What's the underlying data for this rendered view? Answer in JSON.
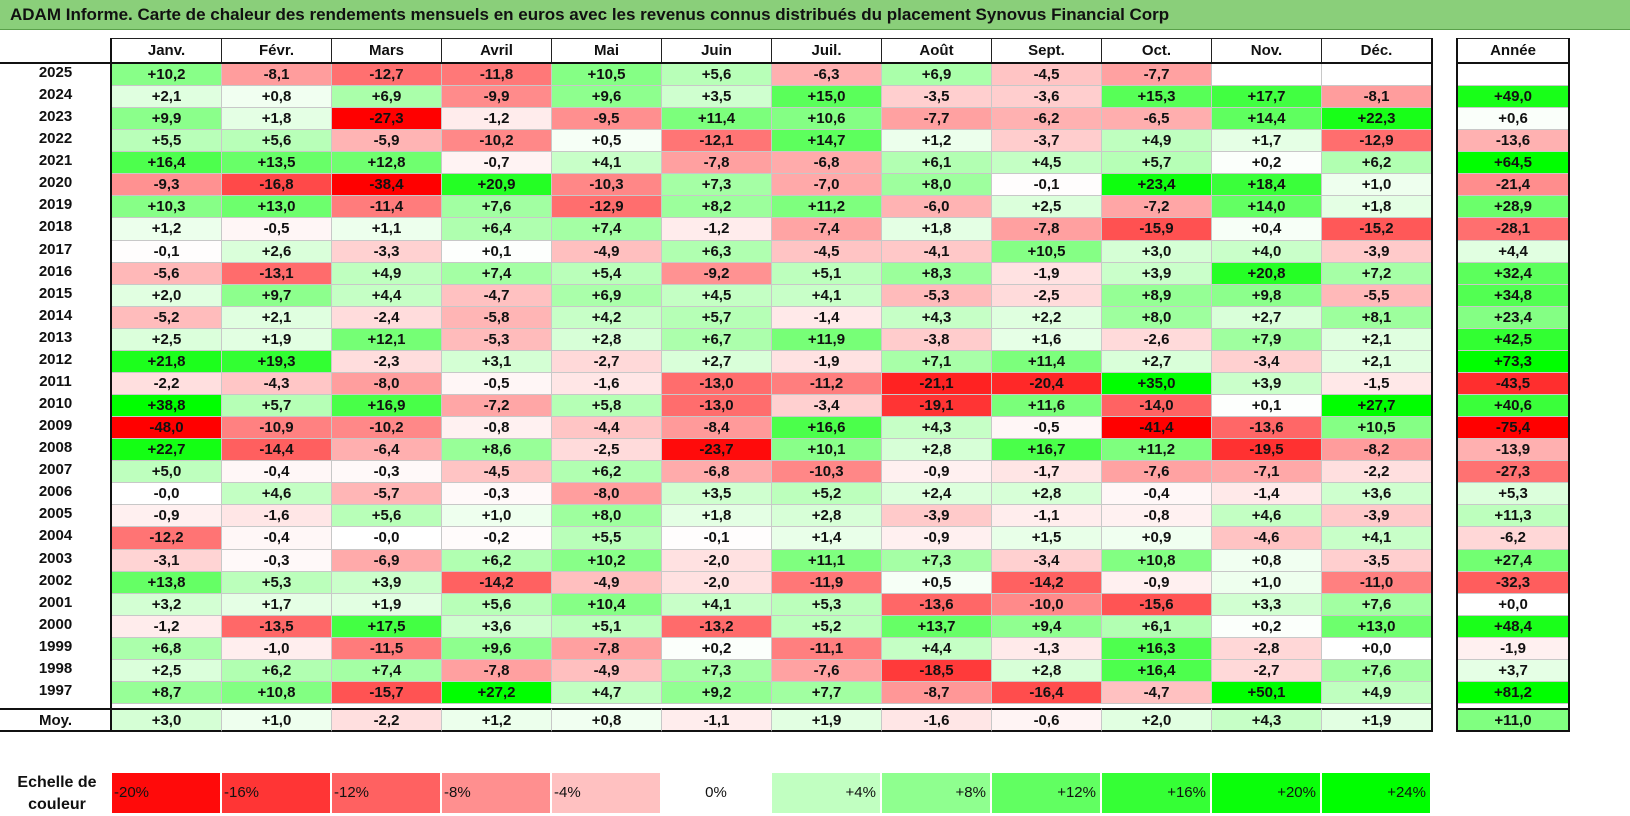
{
  "title": "ADAM Informe. Carte de chaleur des rendements mensuels en euros avec les revenus connus distribués du placement Synovus Financial Corp",
  "colors": {
    "title_bar": "#8acf7a",
    "negative": "#ff0000",
    "positive": "#00ff00",
    "neutral": "#ffffff"
  },
  "chart_data": {
    "type": "heatmap",
    "title": "ADAM Informe. Carte de chaleur des rendements mensuels en euros avec les revenus connus distribués du placement Synovus Financial Corp",
    "months": [
      "Janv.",
      "Févr.",
      "Mars",
      "Avril",
      "Mai",
      "Juin",
      "Juil.",
      "Août",
      "Sept.",
      "Oct.",
      "Nov.",
      "Déc."
    ],
    "year_header": "Année",
    "rows": [
      {
        "year": "2025",
        "values": [
          "+10,2",
          "-8,1",
          "-12,7",
          "-11,8",
          "+10,5",
          "+5,6",
          "-6,3",
          "+6,9",
          "-4,5",
          "-7,7",
          "",
          ""
        ],
        "annual": ""
      },
      {
        "year": "2024",
        "values": [
          "+2,1",
          "+0,8",
          "+6,9",
          "-9,9",
          "+9,6",
          "+3,5",
          "+15,0",
          "-3,5",
          "-3,6",
          "+15,3",
          "+17,7",
          "-8,1"
        ],
        "annual": "+49,0"
      },
      {
        "year": "2023",
        "values": [
          "+9,9",
          "+1,8",
          "-27,3",
          "-1,2",
          "-9,5",
          "+11,4",
          "+10,6",
          "-7,7",
          "-6,2",
          "-6,5",
          "+14,4",
          "+22,3"
        ],
        "annual": "+0,6"
      },
      {
        "year": "2022",
        "values": [
          "+5,5",
          "+5,6",
          "-5,9",
          "-10,2",
          "+0,5",
          "-12,1",
          "+14,7",
          "+1,2",
          "-3,7",
          "+4,9",
          "+1,7",
          "-12,9"
        ],
        "annual": "-13,6"
      },
      {
        "year": "2021",
        "values": [
          "+16,4",
          "+13,5",
          "+12,8",
          "-0,7",
          "+4,1",
          "-7,8",
          "-6,8",
          "+6,1",
          "+4,5",
          "+5,7",
          "+0,2",
          "+6,2"
        ],
        "annual": "+64,5"
      },
      {
        "year": "2020",
        "values": [
          "-9,3",
          "-16,8",
          "-38,4",
          "+20,9",
          "-10,3",
          "+7,3",
          "-7,0",
          "+8,0",
          "-0,1",
          "+23,4",
          "+18,4",
          "+1,0"
        ],
        "annual": "-21,4"
      },
      {
        "year": "2019",
        "values": [
          "+10,3",
          "+13,0",
          "-11,4",
          "+7,6",
          "-12,9",
          "+8,2",
          "+11,2",
          "-6,0",
          "+2,5",
          "-7,2",
          "+14,0",
          "+1,8"
        ],
        "annual": "+28,9"
      },
      {
        "year": "2018",
        "values": [
          "+1,2",
          "-0,5",
          "+1,1",
          "+6,4",
          "+7,4",
          "-1,2",
          "-7,4",
          "+1,8",
          "-7,8",
          "-15,9",
          "+0,4",
          "-15,2"
        ],
        "annual": "-28,1"
      },
      {
        "year": "2017",
        "values": [
          "-0,1",
          "+2,6",
          "-3,3",
          "+0,1",
          "-4,9",
          "+6,3",
          "-4,5",
          "-4,1",
          "+10,5",
          "+3,0",
          "+4,0",
          "-3,9"
        ],
        "annual": "+4,4"
      },
      {
        "year": "2016",
        "values": [
          "-5,6",
          "-13,1",
          "+4,9",
          "+7,4",
          "+5,4",
          "-9,2",
          "+5,1",
          "+8,3",
          "-1,9",
          "+3,9",
          "+20,8",
          "+7,2"
        ],
        "annual": "+32,4"
      },
      {
        "year": "2015",
        "values": [
          "+2,0",
          "+9,7",
          "+4,4",
          "-4,7",
          "+6,9",
          "+4,5",
          "+4,1",
          "-5,3",
          "-2,5",
          "+8,9",
          "+9,8",
          "-5,5"
        ],
        "annual": "+34,8"
      },
      {
        "year": "2014",
        "values": [
          "-5,2",
          "+2,1",
          "-2,4",
          "-5,8",
          "+4,2",
          "+5,7",
          "-1,4",
          "+4,3",
          "+2,2",
          "+8,0",
          "+2,7",
          "+8,1"
        ],
        "annual": "+23,4"
      },
      {
        "year": "2013",
        "values": [
          "+2,5",
          "+1,9",
          "+12,1",
          "-5,3",
          "+2,8",
          "+6,7",
          "+11,9",
          "-3,8",
          "+1,6",
          "-2,6",
          "+7,9",
          "+2,1"
        ],
        "annual": "+42,5"
      },
      {
        "year": "2012",
        "values": [
          "+21,8",
          "+19,3",
          "-2,3",
          "+3,1",
          "-2,7",
          "+2,7",
          "-1,9",
          "+7,1",
          "+11,4",
          "+2,7",
          "-3,4",
          "+2,1"
        ],
        "annual": "+73,3"
      },
      {
        "year": "2011",
        "values": [
          "-2,2",
          "-4,3",
          "-8,0",
          "-0,5",
          "-1,6",
          "-13,0",
          "-11,2",
          "-21,1",
          "-20,4",
          "+35,0",
          "+3,9",
          "-1,5"
        ],
        "annual": "-43,5"
      },
      {
        "year": "2010",
        "values": [
          "+38,8",
          "+5,7",
          "+16,9",
          "-7,2",
          "+5,8",
          "-13,0",
          "-3,4",
          "-19,1",
          "+11,6",
          "-14,0",
          "+0,1",
          "+27,7"
        ],
        "annual": "+40,6"
      },
      {
        "year": "2009",
        "values": [
          "-48,0",
          "-10,9",
          "-10,2",
          "-0,8",
          "-4,4",
          "-8,4",
          "+16,6",
          "+4,3",
          "-0,5",
          "-41,4",
          "-13,6",
          "+10,5"
        ],
        "annual": "-75,4"
      },
      {
        "year": "2008",
        "values": [
          "+22,7",
          "-14,4",
          "-6,4",
          "+8,6",
          "-2,5",
          "-23,7",
          "+10,1",
          "+2,8",
          "+16,7",
          "+11,2",
          "-19,5",
          "-8,2"
        ],
        "annual": "-13,9"
      },
      {
        "year": "2007",
        "values": [
          "+5,0",
          "-0,4",
          "-0,3",
          "-4,5",
          "+6,2",
          "-6,8",
          "-10,3",
          "-0,9",
          "-1,7",
          "-7,6",
          "-7,1",
          "-2,2"
        ],
        "annual": "-27,3"
      },
      {
        "year": "2006",
        "values": [
          "-0,0",
          "+4,6",
          "-5,7",
          "-0,3",
          "-8,0",
          "+3,5",
          "+5,2",
          "+2,4",
          "+2,8",
          "-0,4",
          "-1,4",
          "+3,6"
        ],
        "annual": "+5,3"
      },
      {
        "year": "2005",
        "values": [
          "-0,9",
          "-1,6",
          "+5,6",
          "+1,0",
          "+8,0",
          "+1,8",
          "+2,8",
          "-3,9",
          "-1,1",
          "-0,8",
          "+4,6",
          "-3,9"
        ],
        "annual": "+11,3"
      },
      {
        "year": "2004",
        "values": [
          "-12,2",
          "-0,4",
          "-0,0",
          "-0,2",
          "+5,5",
          "-0,1",
          "+1,4",
          "-0,9",
          "+1,5",
          "+0,9",
          "-4,6",
          "+4,1"
        ],
        "annual": "-6,2"
      },
      {
        "year": "2003",
        "values": [
          "-3,1",
          "-0,3",
          "-6,9",
          "+6,2",
          "+10,2",
          "-2,0",
          "+11,1",
          "+7,3",
          "-3,4",
          "+10,8",
          "+0,8",
          "-3,5"
        ],
        "annual": "+27,4"
      },
      {
        "year": "2002",
        "values": [
          "+13,8",
          "+5,3",
          "+3,9",
          "-14,2",
          "-4,9",
          "-2,0",
          "-11,9",
          "+0,5",
          "-14,2",
          "-0,9",
          "+1,0",
          "-11,0"
        ],
        "annual": "-32,3"
      },
      {
        "year": "2001",
        "values": [
          "+3,2",
          "+1,7",
          "+1,9",
          "+5,6",
          "+10,4",
          "+4,1",
          "+5,3",
          "-13,6",
          "-10,0",
          "-15,6",
          "+3,3",
          "+7,6"
        ],
        "annual": "+0,0"
      },
      {
        "year": "2000",
        "values": [
          "-1,2",
          "-13,5",
          "+17,5",
          "+3,6",
          "+5,1",
          "-13,2",
          "+5,2",
          "+13,7",
          "+9,4",
          "+6,1",
          "+0,2",
          "+13,0"
        ],
        "annual": "+48,4"
      },
      {
        "year": "1999",
        "values": [
          "+6,8",
          "-1,0",
          "-11,5",
          "+9,6",
          "-7,8",
          "+0,2",
          "-11,1",
          "+4,4",
          "-1,3",
          "+16,3",
          "-2,8",
          "+0,0"
        ],
        "annual": "-1,9"
      },
      {
        "year": "1998",
        "values": [
          "+2,5",
          "+6,2",
          "+7,4",
          "-7,8",
          "-4,9",
          "+7,3",
          "-7,6",
          "-18,5",
          "+2,8",
          "+16,4",
          "-2,7",
          "+7,6"
        ],
        "annual": "+3,7"
      },
      {
        "year": "1997",
        "values": [
          "+8,7",
          "+10,8",
          "-15,7",
          "+27,2",
          "+4,7",
          "+9,2",
          "+7,7",
          "-8,7",
          "-16,4",
          "-4,7",
          "+50,1",
          "+4,9"
        ],
        "annual": "+81,2"
      }
    ],
    "average": {
      "label": "Moy.",
      "values": [
        "+3,0",
        "+1,0",
        "-2,2",
        "+1,2",
        "+0,8",
        "-1,1",
        "+1,9",
        "-1,6",
        "-0,6",
        "+2,0",
        "+4,3",
        "+1,9"
      ],
      "annual": "+11,0"
    },
    "scale": {
      "label": "Echelle de couleur",
      "items": [
        "-20%",
        "-16%",
        "-12%",
        "-8%",
        "-4%",
        "0%",
        "+4%",
        "+8%",
        "+12%",
        "+16%",
        "+20%",
        "+24%"
      ]
    }
  }
}
